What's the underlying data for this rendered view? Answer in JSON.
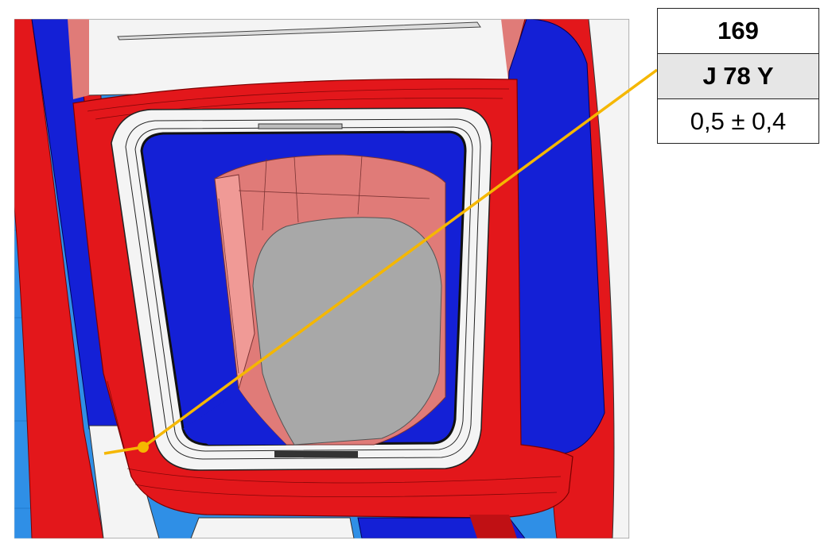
{
  "callout": {
    "number": "169",
    "code": "J 78 Y",
    "tolerance": "0,5 ± 0,4"
  },
  "colors": {
    "background_blue": "#2f8fe6",
    "red_part": "#e3171b",
    "blue_part": "#1420d6",
    "pink_interior": "#e07b78",
    "gray_floor": "#a8a8a8",
    "white_part": "#f4f4f4",
    "leader_line": "#f5b700"
  }
}
